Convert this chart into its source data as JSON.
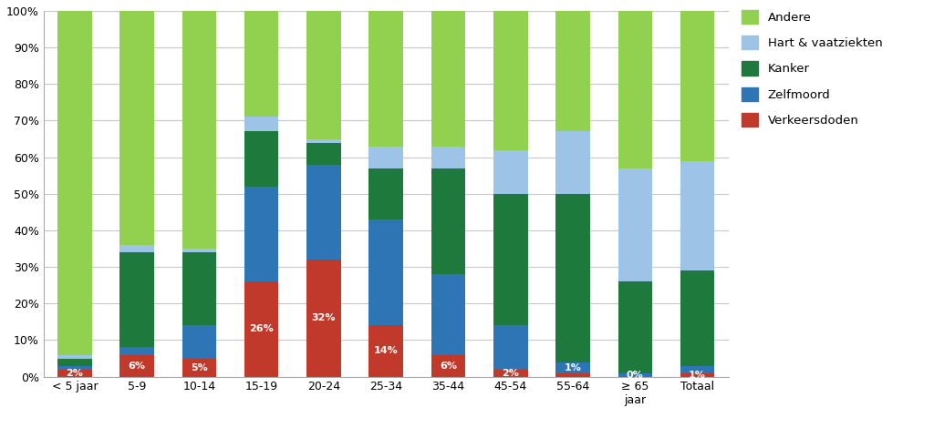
{
  "categories": [
    "< 5 jaar",
    "5-9",
    "10-14",
    "15-19",
    "20-24",
    "25-34",
    "35-44",
    "45-54",
    "55-64",
    "≥ 65\njaar",
    "Totaal"
  ],
  "series": {
    "Verkeersdoden": [
      2,
      6,
      5,
      26,
      32,
      14,
      6,
      2,
      1,
      0,
      1
    ],
    "Zelfmoord": [
      1,
      2,
      9,
      26,
      26,
      29,
      22,
      12,
      3,
      1,
      2
    ],
    "Kanker": [
      2,
      26,
      20,
      15,
      6,
      14,
      29,
      36,
      46,
      25,
      26
    ],
    "Hart & vaatziekten": [
      1,
      2,
      1,
      4,
      1,
      6,
      6,
      12,
      17,
      31,
      30
    ],
    "Andere": [
      94,
      64,
      65,
      29,
      35,
      37,
      37,
      38,
      33,
      43,
      41
    ]
  },
  "colors": {
    "Verkeersdoden": "#c0392b",
    "Zelfmoord": "#2e75b6",
    "Kanker": "#1e7a3c",
    "Hart & vaatziekten": "#9dc3e6",
    "Andere": "#92d050"
  },
  "labels": {
    "indices": [
      0,
      1,
      2,
      3,
      4,
      5,
      6,
      7,
      8,
      9,
      10
    ],
    "series": [
      "Verkeersdoden",
      "Verkeersdoden",
      "Verkeersdoden",
      "Verkeersdoden",
      "Verkeersdoden",
      "Verkeersdoden",
      "Verkeersdoden",
      "Verkeersdoden",
      "Zelfmoord",
      "Zelfmoord",
      "Verkeersdoden"
    ],
    "texts": [
      "2%",
      "6%",
      "5%",
      "26%",
      "32%",
      "14%",
      "6%",
      "2%",
      "1%",
      "0%",
      "1%"
    ]
  },
  "ylim": [
    0,
    100
  ],
  "yticks": [
    0,
    10,
    20,
    30,
    40,
    50,
    60,
    70,
    80,
    90,
    100
  ],
  "ytick_labels": [
    "0%",
    "10%",
    "20%",
    "30%",
    "40%",
    "50%",
    "60%",
    "70%",
    "80%",
    "90%",
    "100%"
  ],
  "background_color": "#ffffff",
  "grid_color": "#c8c8c8",
  "bar_width": 0.55
}
